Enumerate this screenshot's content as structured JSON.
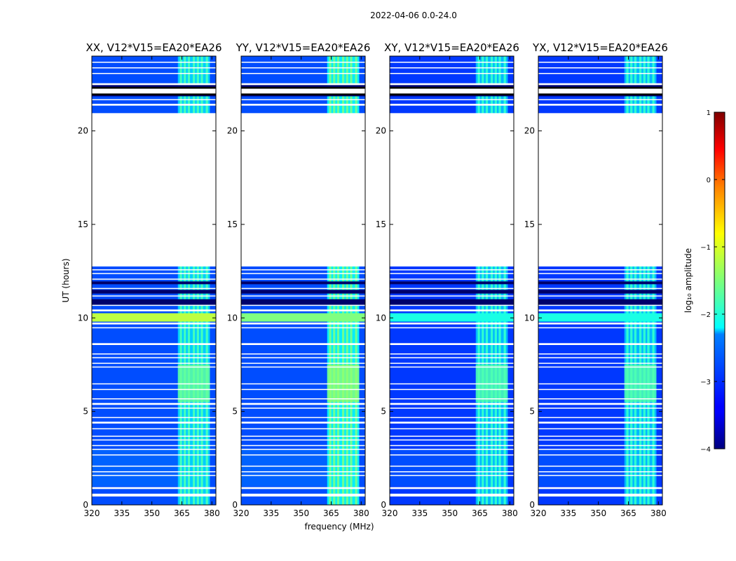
{
  "figure": {
    "suptitle": "2022-04-06 0.0-24.0",
    "xlabel": "frequency (MHz)",
    "ylabel": "UT (hours)",
    "colorbar_label": "log₁₀ amplitude",
    "colorbar_ticks": [
      "1",
      "0",
      "−1",
      "−2",
      "−3",
      "−4"
    ]
  },
  "colors": {
    "background": "#ffffff",
    "axis": "#000000",
    "colormap": "jet"
  },
  "chart_data": [
    {
      "type": "heatmap",
      "title": "XX, V12*V15=EA20*EA26",
      "xlabel": "frequency (MHz)",
      "ylabel": "UT (hours)",
      "xlim": [
        320,
        382
      ],
      "ylim": [
        0,
        24
      ],
      "xticks": [
        320,
        335,
        350,
        365,
        380
      ],
      "yticks": [
        0,
        5,
        10,
        15,
        20
      ],
      "colorbar_range": [
        -4,
        1
      ],
      "base_log_amplitude": -3.0,
      "rfi_band_mhz": [
        363,
        379
      ],
      "rfi_log_amplitude": -1.8,
      "bright_rows": [
        {
          "ut": [
            9.8,
            10.25
          ],
          "log_amplitude": -1.2
        }
      ],
      "empty_ut": [
        [
          12.75,
          20.95
        ]
      ]
    },
    {
      "type": "heatmap",
      "title": "YY, V12*V15=EA20*EA26",
      "xlabel": "frequency (MHz)",
      "ylabel": "UT (hours)",
      "xlim": [
        320,
        382
      ],
      "ylim": [
        0,
        24
      ],
      "xticks": [
        320,
        335,
        350,
        365,
        380
      ],
      "yticks": [
        0,
        5,
        10,
        15,
        20
      ],
      "colorbar_range": [
        -4,
        1
      ],
      "base_log_amplitude": -3.0,
      "rfi_band_mhz": [
        363,
        379
      ],
      "rfi_log_amplitude": -1.6,
      "bright_rows": [
        {
          "ut": [
            9.8,
            10.25
          ],
          "log_amplitude": -1.5
        }
      ],
      "empty_ut": [
        [
          12.75,
          20.95
        ]
      ]
    },
    {
      "type": "heatmap",
      "title": "XY, V12*V15=EA20*EA26",
      "xlabel": "frequency (MHz)",
      "ylabel": "UT (hours)",
      "xlim": [
        320,
        382
      ],
      "ylim": [
        0,
        24
      ],
      "xticks": [
        320,
        335,
        350,
        365,
        380
      ],
      "yticks": [
        0,
        5,
        10,
        15,
        20
      ],
      "colorbar_range": [
        -4,
        1
      ],
      "base_log_amplitude": -3.1,
      "rfi_band_mhz": [
        363,
        379
      ],
      "rfi_log_amplitude": -1.9,
      "bright_rows": [
        {
          "ut": [
            9.8,
            10.25
          ],
          "log_amplitude": -2.0
        }
      ],
      "empty_ut": [
        [
          12.75,
          20.95
        ]
      ]
    },
    {
      "type": "heatmap",
      "title": "YX, V12*V15=EA20*EA26",
      "xlabel": "frequency (MHz)",
      "ylabel": "UT (hours)",
      "xlim": [
        320,
        382
      ],
      "ylim": [
        0,
        24
      ],
      "xticks": [
        320,
        335,
        350,
        365,
        380
      ],
      "yticks": [
        0,
        5,
        10,
        15,
        20
      ],
      "colorbar_range": [
        -4,
        1
      ],
      "base_log_amplitude": -3.1,
      "rfi_band_mhz": [
        363,
        379
      ],
      "rfi_log_amplitude": -1.9,
      "bright_rows": [
        {
          "ut": [
            9.8,
            10.25
          ],
          "log_amplitude": -2.0
        }
      ],
      "empty_ut": [
        [
          12.75,
          20.95
        ]
      ]
    }
  ],
  "shared": {
    "flagged_rows_ut": [
      [
        0.45,
        0.6
      ],
      [
        0.85,
        0.95
      ],
      [
        1.55,
        1.6
      ],
      [
        1.75,
        1.8
      ],
      [
        2.05,
        2.1
      ],
      [
        2.65,
        2.7
      ],
      [
        2.95,
        3.0
      ],
      [
        3.15,
        3.2
      ],
      [
        3.45,
        3.5
      ],
      [
        3.65,
        3.7
      ],
      [
        4.05,
        4.1
      ],
      [
        4.35,
        4.45
      ],
      [
        4.65,
        4.7
      ],
      [
        5.15,
        5.2
      ],
      [
        5.35,
        5.45
      ],
      [
        5.65,
        5.7
      ],
      [
        6.15,
        6.2
      ],
      [
        6.45,
        6.5
      ],
      [
        7.35,
        7.4
      ],
      [
        7.55,
        7.6
      ],
      [
        7.85,
        7.9
      ],
      [
        8.05,
        8.1
      ],
      [
        8.55,
        8.65
      ],
      [
        9.45,
        9.5
      ],
      [
        9.65,
        9.75
      ],
      [
        10.35,
        10.45
      ],
      [
        10.65,
        10.7
      ],
      [
        11.15,
        11.2
      ],
      [
        11.55,
        11.6
      ],
      [
        12.05,
        12.1
      ],
      [
        12.35,
        12.4
      ],
      [
        12.55,
        12.6
      ],
      [
        21.35,
        21.45
      ],
      [
        21.65,
        21.7
      ],
      [
        21.95,
        22.35
      ],
      [
        22.45,
        22.55
      ],
      [
        23.05,
        23.1
      ],
      [
        23.35,
        23.4
      ],
      [
        23.65,
        23.7
      ]
    ],
    "dark_rows_ut": [
      [
        10.7,
        11.0
      ],
      [
        11.3,
        11.5
      ],
      [
        11.8,
        11.95
      ],
      [
        21.85,
        21.95
      ],
      [
        22.35,
        22.45
      ]
    ],
    "rfi_channels_mhz": [
      364.5,
      366.5,
      368.5,
      371,
      373,
      375,
      377.5
    ]
  }
}
